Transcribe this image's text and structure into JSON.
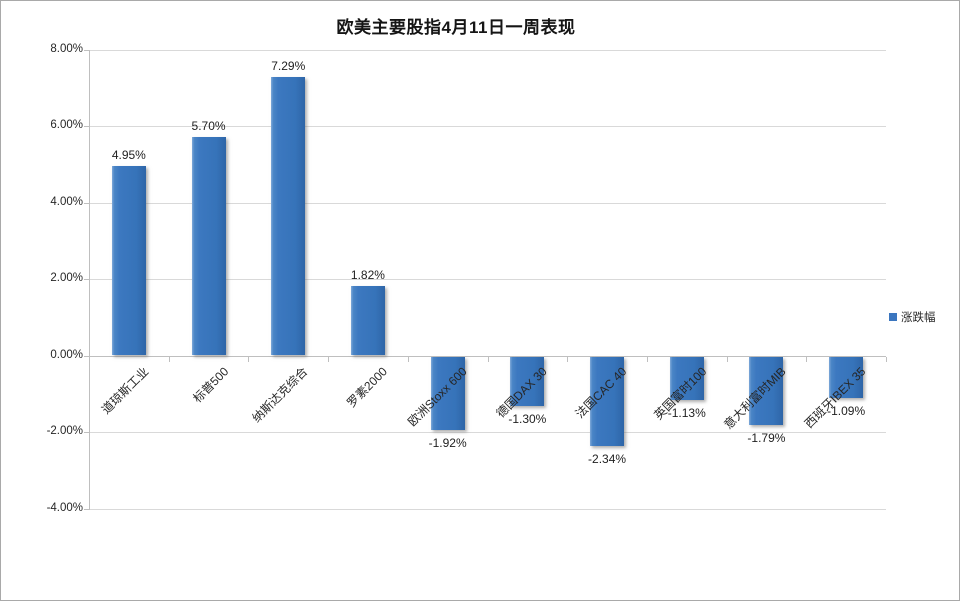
{
  "title": "欧美主要股指4月11日一周表现",
  "legend": {
    "label": "涨跌幅",
    "swatch_color": "#3b76bf"
  },
  "colors": {
    "bar": "#3b76bf",
    "bar_highlight": "#7fa9d9",
    "bar_shade": "#2e65a7",
    "gridline": "#d9d9d9",
    "axis_line": "#bfbfbf",
    "text": "#262626",
    "frame_border": "#a9a9a9",
    "background": "#ffffff"
  },
  "y_axis": {
    "tick_labels": [
      "8.00%",
      "6.00%",
      "4.00%",
      "2.00%",
      "0.00%",
      "-2.00%",
      "-4.00%"
    ],
    "min": -4,
    "max": 8,
    "step": 2
  },
  "chart_data": {
    "type": "bar",
    "title": "欧美主要股指4月11日一周表现",
    "categories": [
      "道琼斯工业",
      "标普500",
      "纳斯达克综合",
      "罗素2000",
      "欧洲Stoxx 600",
      "德国DAX 30",
      "法国CAC 40",
      "英国富时100",
      "意大利富时MIB",
      "西班牙IBEX 35"
    ],
    "values": [
      4.95,
      5.7,
      7.29,
      1.82,
      -1.92,
      -1.3,
      -2.34,
      -1.13,
      -1.79,
      -1.09
    ],
    "data_labels": [
      "4.95%",
      "5.70%",
      "7.29%",
      "1.82%",
      "-1.92%",
      "-1.30%",
      "-2.34%",
      "-1.13%",
      "-1.79%",
      "-1.09%"
    ],
    "series": [
      {
        "name": "涨跌幅",
        "values": [
          4.95,
          5.7,
          7.29,
          1.82,
          -1.92,
          -1.3,
          -2.34,
          -1.13,
          -1.79,
          -1.09
        ]
      }
    ],
    "xlabel": "",
    "ylabel": "",
    "ylim": [
      -4,
      8
    ],
    "y_tick_step": 2,
    "grid": true,
    "legend_position": "right"
  }
}
